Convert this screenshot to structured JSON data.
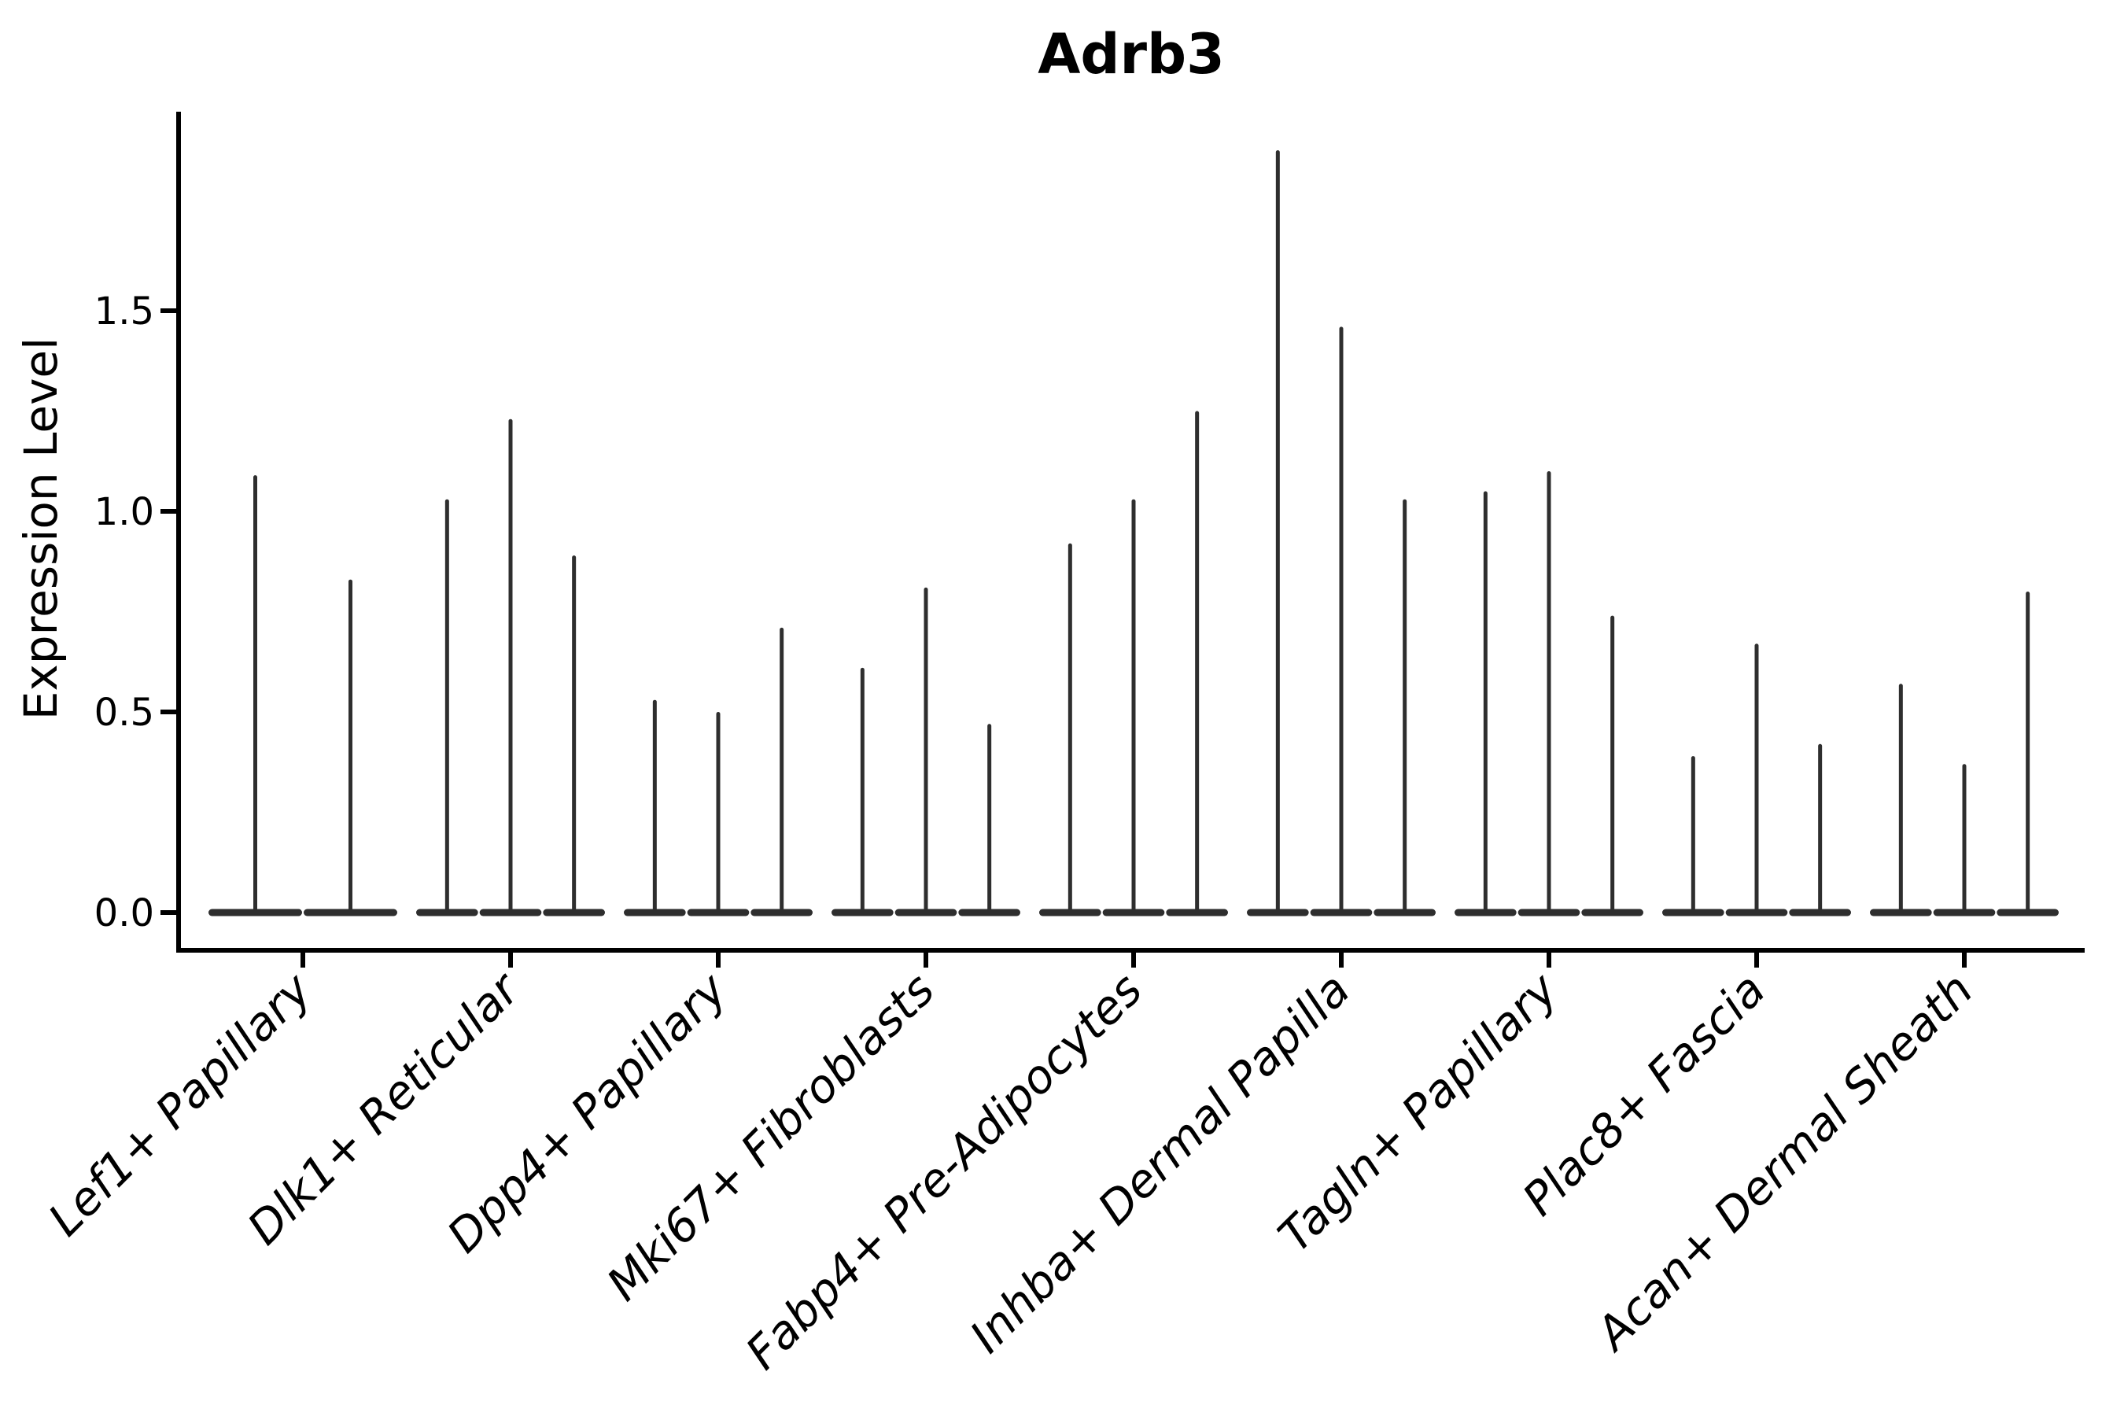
{
  "figure": {
    "title": "Adrb3",
    "y_axis_label": "Expression Level"
  },
  "chart_data": {
    "type": "violin",
    "title": "Adrb3",
    "xlabel": "",
    "ylabel": "Expression Level",
    "y_ticks": [
      0.0,
      0.5,
      1.0,
      1.5
    ],
    "y_tick_labels": [
      "0.0",
      "0.5",
      "1.0",
      "1.5"
    ],
    "ylim": [
      -0.09,
      2.0
    ],
    "grid": false,
    "legend_position": "none",
    "categories": [
      "Lef1+ Papillary",
      "Dlk1+ Reticular",
      "Dpp4+ Papillary",
      "Mki67+ Fibroblasts",
      "Fabp4+ Pre-Adipocytes",
      "Inhba+ Dermal Papilla",
      "Tagln+ Papillary",
      "Plac8+ Fascia",
      "Acan+ Dermal Sheath"
    ],
    "groups": [
      {
        "label": "Lef1+ Papillary",
        "violin_max_values": [
          1.09,
          0.83
        ]
      },
      {
        "label": "Dlk1+ Reticular",
        "violin_max_values": [
          1.03,
          1.23,
          0.89
        ]
      },
      {
        "label": "Dpp4+ Papillary",
        "violin_max_values": [
          0.53,
          0.5,
          0.71
        ]
      },
      {
        "label": "Mki67+ Fibroblasts",
        "violin_max_values": [
          0.61,
          0.81,
          0.47
        ]
      },
      {
        "label": "Fabp4+ Pre-Adipocytes",
        "violin_max_values": [
          0.92,
          1.03,
          1.25
        ]
      },
      {
        "label": "Inhba+ Dermal Papilla",
        "violin_max_values": [
          1.9,
          1.46,
          1.03
        ]
      },
      {
        "label": "Tagln+ Papillary",
        "violin_max_values": [
          1.05,
          1.1,
          0.74
        ]
      },
      {
        "label": "Plac8+ Fascia",
        "violin_max_values": [
          0.39,
          0.67,
          0.42
        ]
      },
      {
        "label": "Acan+ Dermal Sheath",
        "violin_max_values": [
          0.57,
          0.37,
          0.8
        ]
      }
    ],
    "violin_shape_note": "each violin is a thin vertical spike rising from a flat wide base at expression 0",
    "colors": {
      "violin": "#2e2e2e",
      "axis": "#000000",
      "text": "#000000",
      "background": "#ffffff"
    }
  }
}
